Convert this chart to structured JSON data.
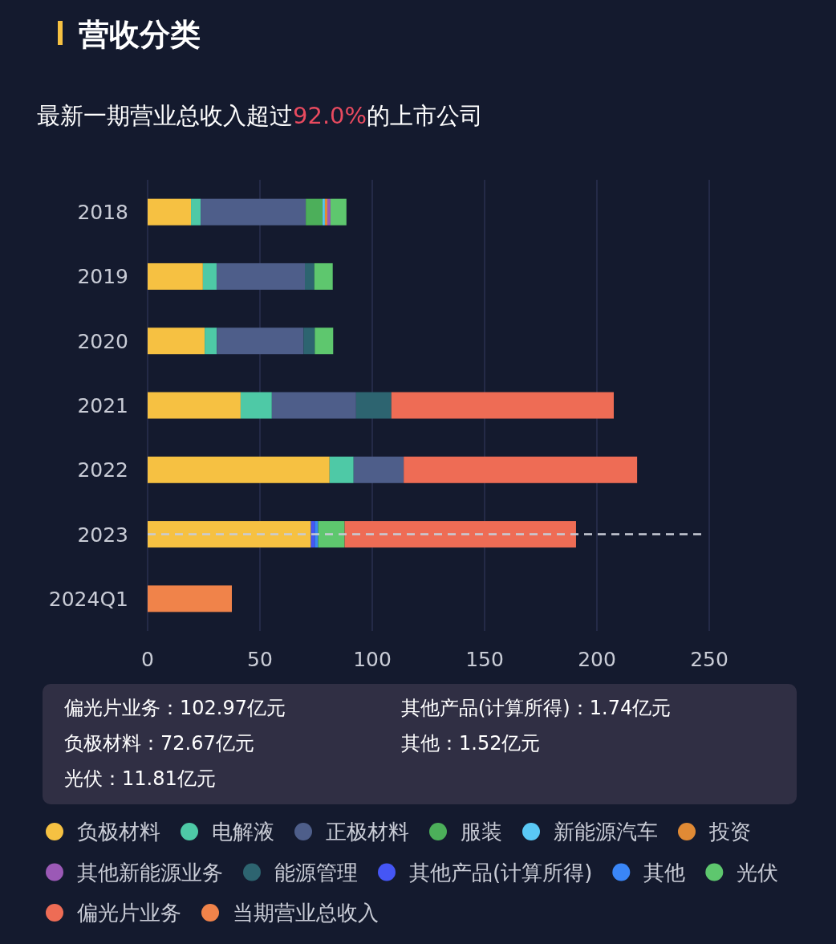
{
  "chart_data": {
    "type": "bar",
    "orientation": "horizontal",
    "stacked": true,
    "title": "营收分类",
    "subtitle": "最新一期营业总收入超过92.0%的上市公司",
    "categories": [
      "2018",
      "2019",
      "2020",
      "2021",
      "2022",
      "2023",
      "2024Q1"
    ],
    "series": [
      {
        "name": "负极材料",
        "color": "#f6c142",
        "values": [
          19.3,
          24.6,
          25.4,
          41.4,
          81.0,
          72.7,
          null
        ]
      },
      {
        "name": "电解液",
        "color": "#4ec9a6",
        "values": [
          4.3,
          6.1,
          5.4,
          13.9,
          10.7,
          null,
          null
        ]
      },
      {
        "name": "正极材料",
        "color": "#4e5e8a",
        "values": [
          46.8,
          39.3,
          38.6,
          37.5,
          22.3,
          null,
          null
        ]
      },
      {
        "name": "服装",
        "color": "#4caf5a",
        "values": [
          7.5,
          null,
          null,
          null,
          null,
          null,
          null
        ]
      },
      {
        "name": "新能源汽车",
        "color": "#5ac8f5",
        "values": [
          1.0,
          null,
          null,
          null,
          null,
          null,
          null
        ]
      },
      {
        "name": "投资",
        "color": "#e08a35",
        "values": [
          1.1,
          null,
          null,
          null,
          null,
          null,
          null
        ]
      },
      {
        "name": "其他新能源业务",
        "color": "#9b59b6",
        "values": [
          1.4,
          null,
          null,
          null,
          null,
          null,
          null
        ]
      },
      {
        "name": "能源管理",
        "color": "#2d6470",
        "values": [
          null,
          4.2,
          5.0,
          15.7,
          null,
          null,
          null
        ]
      },
      {
        "name": "其他产品(计算所得)",
        "color": "#4556f5",
        "values": [
          null,
          null,
          null,
          null,
          null,
          1.7,
          null
        ]
      },
      {
        "name": "其他",
        "color": "#3a86f7",
        "values": [
          null,
          null,
          null,
          null,
          null,
          1.5,
          null
        ]
      },
      {
        "name": "光伏",
        "color": "#5ec76e",
        "values": [
          7.1,
          8.2,
          8.2,
          null,
          null,
          11.8,
          null
        ]
      },
      {
        "name": "偏光片业务",
        "color": "#ee6c55",
        "values": [
          null,
          null,
          null,
          99.0,
          103.9,
          103.0,
          null
        ]
      },
      {
        "name": "当期营业总收入",
        "color": "#f0834a",
        "values": [
          null,
          null,
          null,
          null,
          null,
          null,
          37.5
        ]
      }
    ],
    "xlim": [
      0,
      250
    ],
    "xticks": [
      0,
      50,
      100,
      150,
      200,
      250
    ],
    "grid": "x",
    "legend": "bottom",
    "ref_lines": [
      {
        "axis": "y",
        "value": "2023",
        "line_style": "dashed",
        "color": "#c8ccd6"
      }
    ],
    "annotations": [
      "偏光片业务：102.97亿元",
      "负极材料：72.67亿元",
      "光伏：11.81亿元",
      "其他产品(计算所得)：1.74亿元",
      "其他：1.52亿元"
    ]
  }
}
